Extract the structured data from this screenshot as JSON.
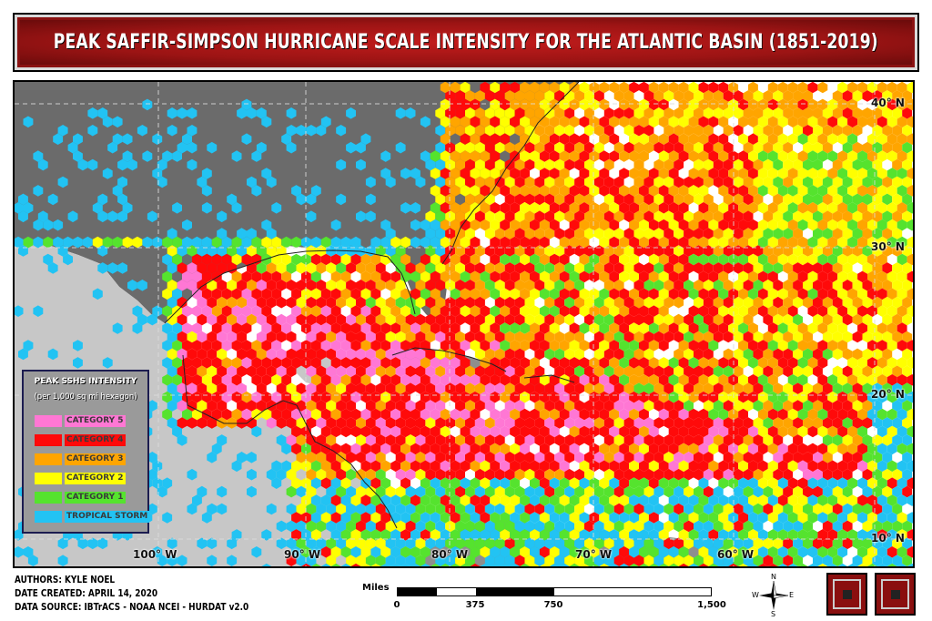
{
  "title": "PEAK SAFFIR-SIMPSON HURRICANE SCALE INTENSITY FOR THE ATLANTIC BASIN (1851-2019)",
  "colors": {
    "ocean": "#ffffff",
    "land_us": "#6b6b6b",
    "land_other": "#8e8e8e",
    "land_mex": "#c7c7c7",
    "category_5": "#ff77d4",
    "category_4": "#ff0a0a",
    "category_3": "#ffa500",
    "category_2": "#ffff00",
    "category_1": "#55e32e",
    "tropical_storm": "#22c3f3",
    "title_red": "#a31616"
  },
  "latitude_labels": [
    "40° N",
    "30° N",
    "20° N",
    "10° N"
  ],
  "longitude_labels": [
    "100° W",
    "90° W",
    "80° W",
    "70° W",
    "60° W"
  ],
  "legend": {
    "title": "PEAK SSHS INTENSITY",
    "subtitle": "(per 1,000 sq mi hexagon)",
    "items": [
      {
        "label": "CATEGORY 5",
        "color": "#ff77d4"
      },
      {
        "label": "CATEGORY 4",
        "color": "#ff0a0a"
      },
      {
        "label": "CATEGORY 3",
        "color": "#ffa500"
      },
      {
        "label": "CATEGORY 2",
        "color": "#ffff00"
      },
      {
        "label": "CATEGORY 1",
        "color": "#55e32e"
      },
      {
        "label": "TROPICAL STORM",
        "color": "#22c3f3"
      }
    ]
  },
  "credits": {
    "authors": "AUTHORS: KYLE NOEL",
    "date": "DATE CREATED: APRIL 14, 2020",
    "source": "DATA SOURCE: IBTrACS - NOAA NCEI - HURDAT v2.0"
  },
  "scale_bar": {
    "title": "Miles",
    "labels": [
      "0",
      "375",
      "750",
      "1,500"
    ]
  },
  "compass": {
    "n": "N",
    "s": "S",
    "e": "E",
    "w": "W"
  }
}
